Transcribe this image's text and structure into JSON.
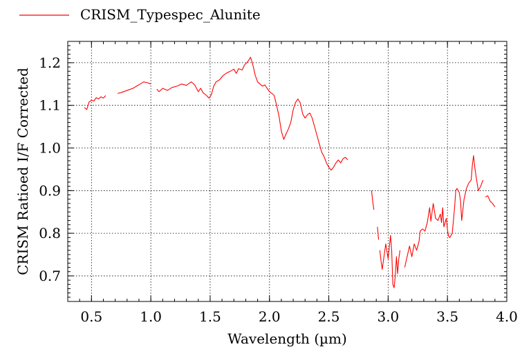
{
  "chart_data": {
    "type": "line",
    "title": "",
    "xlabel": "Wavelength (µm)",
    "ylabel": "CRISM Ratioed I/F Corrected",
    "xlim": [
      0.3,
      4.0
    ],
    "ylim": [
      0.64,
      1.25
    ],
    "grid": true,
    "legend_position": "top-left",
    "x_ticks": [
      "0.5",
      "1.0",
      "1.5",
      "2.0",
      "2.5",
      "3.0",
      "3.5",
      "4.0"
    ],
    "y_ticks": [
      "0.7",
      "0.8",
      "0.9",
      "1.0",
      "1.1",
      "1.2"
    ],
    "x_tick_values": [
      0.5,
      1.0,
      1.5,
      2.0,
      2.5,
      3.0,
      3.5,
      4.0
    ],
    "y_tick_values": [
      0.7,
      0.8,
      0.9,
      1.0,
      1.1,
      1.2
    ],
    "series": [
      {
        "name": "CRISM_Typespec_Alunite",
        "color": "#ff0000",
        "segments": [
          [
            [
              0.44,
              1.095
            ],
            [
              0.46,
              1.09
            ],
            [
              0.48,
              1.108
            ],
            [
              0.5,
              1.112
            ],
            [
              0.52,
              1.11
            ],
            [
              0.54,
              1.118
            ],
            [
              0.56,
              1.115
            ],
            [
              0.58,
              1.12
            ],
            [
              0.6,
              1.117
            ],
            [
              0.62,
              1.123
            ]
          ],
          [
            [
              0.72,
              1.128
            ],
            [
              0.75,
              1.13
            ],
            [
              0.78,
              1.133
            ],
            [
              0.82,
              1.137
            ],
            [
              0.85,
              1.14
            ],
            [
              0.88,
              1.145
            ],
            [
              0.91,
              1.15
            ],
            [
              0.94,
              1.155
            ],
            [
              0.97,
              1.153
            ],
            [
              1.0,
              1.15
            ]
          ],
          [
            [
              1.05,
              1.138
            ],
            [
              1.07,
              1.132
            ],
            [
              1.1,
              1.14
            ],
            [
              1.14,
              1.135
            ],
            [
              1.18,
              1.142
            ],
            [
              1.22,
              1.145
            ],
            [
              1.26,
              1.15
            ],
            [
              1.3,
              1.147
            ],
            [
              1.34,
              1.155
            ],
            [
              1.37,
              1.148
            ],
            [
              1.4,
              1.132
            ],
            [
              1.42,
              1.14
            ],
            [
              1.44,
              1.13
            ],
            [
              1.47,
              1.123
            ],
            [
              1.49,
              1.117
            ],
            [
              1.51,
              1.125
            ],
            [
              1.53,
              1.145
            ],
            [
              1.55,
              1.155
            ],
            [
              1.58,
              1.16
            ],
            [
              1.61,
              1.17
            ],
            [
              1.64,
              1.176
            ],
            [
              1.67,
              1.18
            ],
            [
              1.7,
              1.185
            ],
            [
              1.72,
              1.175
            ],
            [
              1.74,
              1.186
            ],
            [
              1.77,
              1.183
            ],
            [
              1.79,
              1.195
            ],
            [
              1.81,
              1.2
            ],
            [
              1.83,
              1.208
            ],
            [
              1.84,
              1.213
            ],
            [
              1.85,
              1.205
            ],
            [
              1.86,
              1.195
            ],
            [
              1.88,
              1.17
            ],
            [
              1.9,
              1.155
            ],
            [
              1.92,
              1.15
            ],
            [
              1.94,
              1.145
            ],
            [
              1.96,
              1.148
            ],
            [
              1.98,
              1.14
            ],
            [
              2.0,
              1.132
            ],
            [
              2.02,
              1.128
            ],
            [
              2.04,
              1.123
            ],
            [
              2.06,
              1.1
            ],
            [
              2.08,
              1.075
            ],
            [
              2.1,
              1.04
            ],
            [
              2.12,
              1.02
            ],
            [
              2.14,
              1.033
            ],
            [
              2.16,
              1.045
            ],
            [
              2.18,
              1.06
            ],
            [
              2.2,
              1.09
            ],
            [
              2.22,
              1.107
            ],
            [
              2.24,
              1.115
            ],
            [
              2.26,
              1.105
            ],
            [
              2.28,
              1.08
            ],
            [
              2.3,
              1.07
            ],
            [
              2.32,
              1.078
            ],
            [
              2.34,
              1.082
            ],
            [
              2.36,
              1.07
            ],
            [
              2.38,
              1.05
            ],
            [
              2.4,
              1.03
            ],
            [
              2.42,
              1.01
            ],
            [
              2.44,
              0.99
            ],
            [
              2.46,
              0.98
            ],
            [
              2.48,
              0.965
            ],
            [
              2.5,
              0.955
            ],
            [
              2.52,
              0.948
            ],
            [
              2.54,
              0.955
            ],
            [
              2.56,
              0.965
            ],
            [
              2.58,
              0.972
            ],
            [
              2.6,
              0.965
            ],
            [
              2.62,
              0.975
            ],
            [
              2.64,
              0.978
            ],
            [
              2.66,
              0.972
            ]
          ],
          [
            [
              2.86,
              0.9
            ],
            [
              2.87,
              0.875
            ],
            [
              2.88,
              0.855
            ]
          ],
          [
            [
              2.91,
              0.815
            ],
            [
              2.92,
              0.785
            ]
          ],
          [
            [
              2.93,
              0.76
            ],
            [
              2.94,
              0.735
            ],
            [
              2.95,
              0.715
            ],
            [
              2.96,
              0.735
            ],
            [
              2.98,
              0.775
            ],
            [
              3.0,
              0.74
            ],
            [
              3.02,
              0.795
            ],
            [
              3.03,
              0.76
            ],
            [
              3.04,
              0.68
            ],
            [
              3.05,
              0.672
            ],
            [
              3.06,
              0.7
            ],
            [
              3.07,
              0.745
            ],
            [
              3.08,
              0.705
            ],
            [
              3.09,
              0.74
            ],
            [
              3.1,
              0.76
            ]
          ],
          [
            [
              3.14,
              0.72
            ],
            [
              3.16,
              0.745
            ],
            [
              3.18,
              0.77
            ],
            [
              3.2,
              0.745
            ],
            [
              3.22,
              0.775
            ],
            [
              3.24,
              0.76
            ],
            [
              3.26,
              0.78
            ],
            [
              3.27,
              0.805
            ],
            [
              3.29,
              0.81
            ],
            [
              3.31,
              0.805
            ],
            [
              3.33,
              0.825
            ],
            [
              3.35,
              0.86
            ],
            [
              3.36,
              0.828
            ],
            [
              3.38,
              0.87
            ],
            [
              3.4,
              0.835
            ],
            [
              3.42,
              0.83
            ],
            [
              3.44,
              0.845
            ],
            [
              3.45,
              0.825
            ],
            [
              3.46,
              0.86
            ],
            [
              3.47,
              0.815
            ],
            [
              3.49,
              0.835
            ],
            [
              3.5,
              0.808
            ],
            [
              3.51,
              0.793
            ],
            [
              3.52,
              0.79
            ],
            [
              3.54,
              0.8
            ],
            [
              3.56,
              0.86
            ],
            [
              3.57,
              0.9
            ],
            [
              3.58,
              0.905
            ],
            [
              3.6,
              0.895
            ],
            [
              3.61,
              0.875
            ],
            [
              3.62,
              0.83
            ],
            [
              3.63,
              0.855
            ],
            [
              3.64,
              0.88
            ],
            [
              3.66,
              0.905
            ],
            [
              3.68,
              0.918
            ],
            [
              3.7,
              0.925
            ],
            [
              3.71,
              0.96
            ],
            [
              3.72,
              0.982
            ],
            [
              3.73,
              0.955
            ],
            [
              3.74,
              0.935
            ],
            [
              3.76,
              0.9
            ],
            [
              3.78,
              0.91
            ],
            [
              3.8,
              0.925
            ]
          ],
          [
            [
              3.82,
              0.885
            ],
            [
              3.84,
              0.888
            ],
            [
              3.86,
              0.875
            ],
            [
              3.88,
              0.87
            ],
            [
              3.9,
              0.862
            ]
          ]
        ]
      }
    ]
  }
}
